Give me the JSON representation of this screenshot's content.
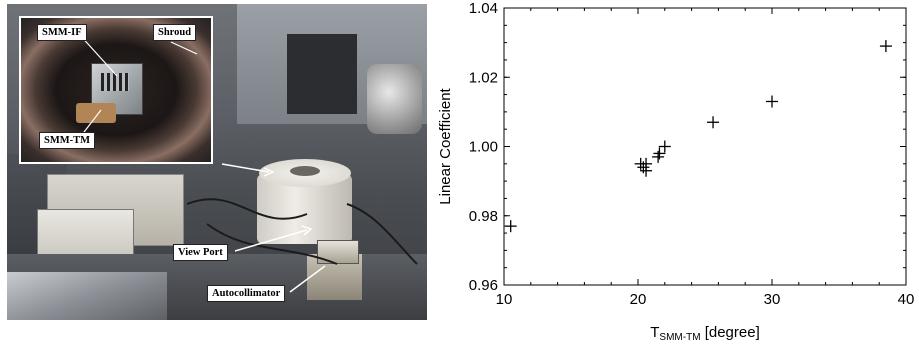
{
  "photo": {
    "labels": {
      "smm_if": "SMM-IF",
      "shroud": "Shroud",
      "smm_tm": "SMM-TM",
      "view_port": "View Port",
      "autocollimator": "Autocollimator"
    }
  },
  "chart_data": {
    "type": "scatter",
    "xlabel_main": "T",
    "xlabel_sub": "SMM-TM",
    "xlabel_unit": " [degree]",
    "ylabel": "Linear Coefficient",
    "xlim": [
      10,
      40
    ],
    "ylim": [
      0.96,
      1.04
    ],
    "xticks": [
      "10",
      "20",
      "30",
      "40"
    ],
    "yticks": [
      "0.96",
      "0.98",
      "1.00",
      "1.02",
      "1.04"
    ],
    "marker": "plus",
    "points": [
      {
        "x": 10.5,
        "y": 0.977
      },
      {
        "x": 20.2,
        "y": 0.995
      },
      {
        "x": 20.4,
        "y": 0.994
      },
      {
        "x": 20.6,
        "y": 0.993
      },
      {
        "x": 20.6,
        "y": 0.995
      },
      {
        "x": 21.5,
        "y": 0.997
      },
      {
        "x": 21.6,
        "y": 0.998
      },
      {
        "x": 22.0,
        "y": 1.0
      },
      {
        "x": 25.6,
        "y": 1.007
      },
      {
        "x": 30.0,
        "y": 1.013
      },
      {
        "x": 38.5,
        "y": 1.029
      }
    ]
  }
}
